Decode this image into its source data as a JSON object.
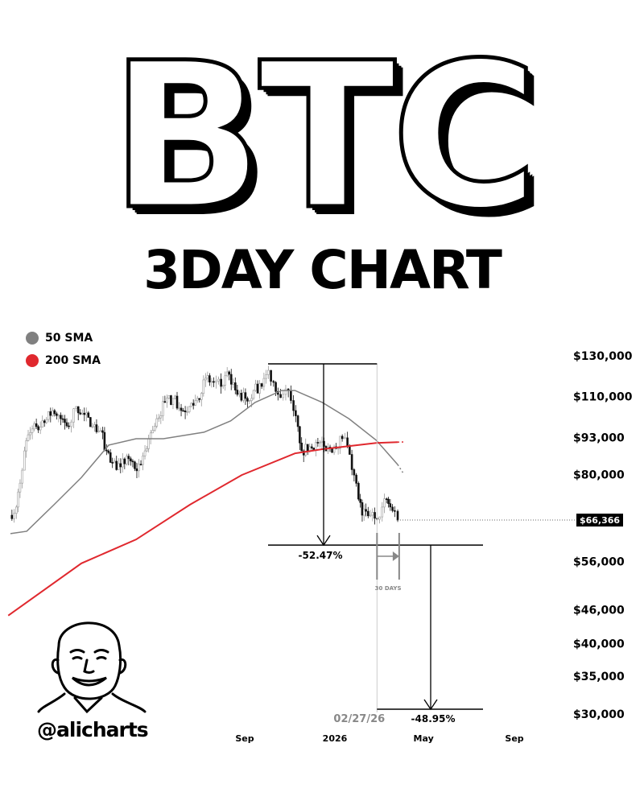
{
  "header": {
    "title": "BTC",
    "subtitle": "3DAY CHART"
  },
  "legend": [
    {
      "label": "50 SMA",
      "color": "#808080"
    },
    {
      "label": "200 SMA",
      "color": "#e0282e"
    }
  ],
  "branding": {
    "handle": "@alicharts"
  },
  "chart_data": {
    "type": "candlestick",
    "interval": "3D",
    "y_scale": "log",
    "ylim": [
      30000,
      130000
    ],
    "y_ticks": [
      {
        "value": 130000,
        "label": "$130,000"
      },
      {
        "value": 110000,
        "label": "$110,000"
      },
      {
        "value": 93000,
        "label": "$93,000"
      },
      {
        "value": 80000,
        "label": "$80,000"
      },
      {
        "value": 56000,
        "label": "$56,000"
      },
      {
        "value": 46000,
        "label": "$46,000"
      },
      {
        "value": 40000,
        "label": "$40,000"
      },
      {
        "value": 35000,
        "label": "$35,000"
      },
      {
        "value": 30000,
        "label": "$30,000"
      }
    ],
    "x_ticks": [
      {
        "date": "2025-09-01",
        "label": "Sep"
      },
      {
        "date": "2026-01-01",
        "label": "2026"
      },
      {
        "date": "2026-05-01",
        "label": "May"
      },
      {
        "date": "2026-09-01",
        "label": "Sep"
      }
    ],
    "current_price": {
      "value": 66366,
      "label": "$66,366"
    },
    "price_path": [
      [
        "2024-10-18",
        67700
      ],
      [
        "2024-10-27",
        70000
      ],
      [
        "2024-11-01",
        77200
      ],
      [
        "2024-11-07",
        88100
      ],
      [
        "2024-11-12",
        94100
      ],
      [
        "2024-11-23",
        97300
      ],
      [
        "2024-12-04",
        98900
      ],
      [
        "2024-12-15",
        103900
      ],
      [
        "2024-12-26",
        100500
      ],
      [
        "2025-01-06",
        97300
      ],
      [
        "2025-01-16",
        105600
      ],
      [
        "2025-01-27",
        102200
      ],
      [
        "2025-02-07",
        97300
      ],
      [
        "2025-02-18",
        95700
      ],
      [
        "2025-02-26",
        88100
      ],
      [
        "2025-03-06",
        83900
      ],
      [
        "2025-03-17",
        82500
      ],
      [
        "2025-03-28",
        85300
      ],
      [
        "2025-04-08",
        81200
      ],
      [
        "2025-04-19",
        88100
      ],
      [
        "2025-04-24",
        92600
      ],
      [
        "2025-05-05",
        100500
      ],
      [
        "2025-05-16",
        107400
      ],
      [
        "2025-05-27",
        109200
      ],
      [
        "2025-06-07",
        103900
      ],
      [
        "2025-06-18",
        105600
      ],
      [
        "2025-06-29",
        109200
      ],
      [
        "2025-07-10",
        118600
      ],
      [
        "2025-07-21",
        116600
      ],
      [
        "2025-07-31",
        114700
      ],
      [
        "2025-08-11",
        120500
      ],
      [
        "2025-08-22",
        111000
      ],
      [
        "2025-09-02",
        109200
      ],
      [
        "2025-09-13",
        112800
      ],
      [
        "2025-09-24",
        114700
      ],
      [
        "2025-10-03",
        122500
      ],
      [
        "2025-10-10",
        116600
      ],
      [
        "2025-10-16",
        111000
      ],
      [
        "2025-10-23",
        111000
      ],
      [
        "2025-10-30",
        112800
      ],
      [
        "2025-11-06",
        103900
      ],
      [
        "2025-11-12",
        97300
      ],
      [
        "2025-11-17",
        88100
      ],
      [
        "2025-11-28",
        89600
      ],
      [
        "2025-12-09",
        91000
      ],
      [
        "2025-12-20",
        88100
      ],
      [
        "2025-12-31",
        89600
      ],
      [
        "2026-01-11",
        92600
      ],
      [
        "2026-01-18",
        89600
      ],
      [
        "2026-01-27",
        79800
      ],
      [
        "2026-02-02",
        72300
      ],
      [
        "2026-02-07",
        67700
      ],
      [
        "2026-02-12",
        68800
      ],
      [
        "2026-02-18",
        67700
      ],
      [
        "2026-02-27",
        66600
      ],
      [
        "2026-03-06",
        70000
      ],
      [
        "2026-03-12",
        72300
      ],
      [
        "2026-03-17",
        70000
      ],
      [
        "2026-03-23",
        68800
      ],
      [
        "2026-03-27",
        66366
      ]
    ],
    "sma50": [
      [
        "2024-10-19",
        62800
      ],
      [
        "2024-11-10",
        63400
      ],
      [
        "2024-12-17",
        70700
      ],
      [
        "2025-01-23",
        79000
      ],
      [
        "2025-03-01",
        90200
      ],
      [
        "2025-04-07",
        92600
      ],
      [
        "2025-05-14",
        92600
      ],
      [
        "2025-07-08",
        95100
      ],
      [
        "2025-08-13",
        99600
      ],
      [
        "2025-09-15",
        107400
      ],
      [
        "2025-10-21",
        112800
      ],
      [
        "2025-11-08",
        112800
      ],
      [
        "2025-12-15",
        107400
      ],
      [
        "2026-01-20",
        100500
      ],
      [
        "2026-02-26",
        92000
      ],
      [
        "2026-03-27",
        83300
      ],
      [
        "2026-04-03",
        80600
      ]
    ],
    "sma200": [
      [
        "2024-10-16",
        44900
      ],
      [
        "2025-01-23",
        55600
      ],
      [
        "2025-04-07",
        61300
      ],
      [
        "2025-06-19",
        70700
      ],
      [
        "2025-08-28",
        79800
      ],
      [
        "2025-11-08",
        87200
      ],
      [
        "2025-12-15",
        88700
      ],
      [
        "2026-02-26",
        91000
      ],
      [
        "2026-03-27",
        91300
      ],
      [
        "2026-04-06",
        91400
      ]
    ],
    "annotations": [
      {
        "type": "drawdown",
        "from_date": "2025-10-06",
        "from_price": 125800,
        "to_price": 59900,
        "label": "-52.47%"
      },
      {
        "type": "drawdown",
        "from_date": "2026-02-27",
        "from_price": 59900,
        "to_price": 30600,
        "label": "-48.95%"
      },
      {
        "type": "date_marker",
        "date": "2026-02-27",
        "label": "02/27/26"
      },
      {
        "type": "duration",
        "from_date": "2026-02-27",
        "to_date": "2026-03-29",
        "label": "30 DAYS"
      }
    ]
  }
}
